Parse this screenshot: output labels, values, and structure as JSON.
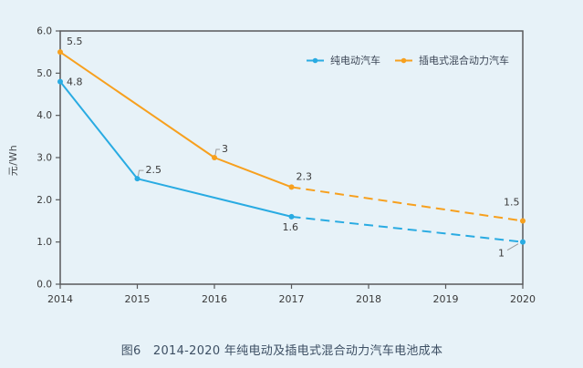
{
  "caption": "图6　2014-2020 年纯电动及插电式混合动力汽车电池成本",
  "colors": {
    "background": "#E7F2F8",
    "frame": "#58595B",
    "tick_label": "#3A3A3A",
    "data_label": "#3A3A3A",
    "leader": "#9B9B9B",
    "caption": "#3D4F63"
  },
  "chart_data": {
    "type": "line",
    "title": "",
    "xlabel": "",
    "ylabel": "元/Wh",
    "ylim": [
      0,
      6
    ],
    "xlim": [
      2014,
      2020
    ],
    "grid": false,
    "legend_position": "top-inside",
    "y_ticks": [
      {
        "v": 0,
        "label": "0.0"
      },
      {
        "v": 1,
        "label": "1.0"
      },
      {
        "v": 2,
        "label": "2.0"
      },
      {
        "v": 3,
        "label": "3.0"
      },
      {
        "v": 4,
        "label": "4.0"
      },
      {
        "v": 5,
        "label": "5.0"
      },
      {
        "v": 6,
        "label": "6.0"
      }
    ],
    "x_ticks": [
      {
        "v": 2014,
        "label": "2014"
      },
      {
        "v": 2015,
        "label": "2015"
      },
      {
        "v": 2016,
        "label": "2016"
      },
      {
        "v": 2017,
        "label": "2017"
      },
      {
        "v": 2018,
        "label": "2018"
      },
      {
        "v": 2019,
        "label": "2019"
      },
      {
        "v": 2020,
        "label": "2020"
      }
    ],
    "series": [
      {
        "name": "纯电动汽车",
        "color": "#29ABE2",
        "solid": [
          [
            2014,
            4.8
          ],
          [
            2015,
            2.5
          ],
          [
            2017,
            1.6
          ]
        ],
        "dashed": [
          [
            2017,
            1.6
          ],
          [
            2020,
            1.0
          ]
        ],
        "points": [
          [
            2014,
            4.8
          ],
          [
            2015,
            2.5
          ],
          [
            2017,
            1.6
          ],
          [
            2020,
            1.0
          ]
        ],
        "labels": [
          {
            "x": 2014,
            "v": 4.8,
            "text": "4.8",
            "dx": 7,
            "dy": 4
          },
          {
            "x": 2015,
            "v": 2.5,
            "text": "2.5",
            "dx": 9,
            "dy": -6,
            "leader": [
              [
                1,
                -3
              ],
              [
                2,
                -9
              ],
              [
                7,
                -9
              ]
            ]
          },
          {
            "x": 2017,
            "v": 1.6,
            "text": "1.6",
            "dx": -10,
            "dy": 15
          },
          {
            "x": 2020,
            "v": 1.0,
            "text": "1",
            "dx": -27,
            "dy": 16,
            "leader": [
              [
                -5,
                2
              ],
              [
                -17,
                9
              ]
            ]
          }
        ]
      },
      {
        "name": "插电式混合动力汽车",
        "color": "#F7A01E",
        "solid": [
          [
            2014,
            5.5
          ],
          [
            2016,
            3.0
          ],
          [
            2017,
            2.3
          ]
        ],
        "dashed": [
          [
            2017,
            2.3
          ],
          [
            2020,
            1.5
          ]
        ],
        "points": [
          [
            2014,
            5.5
          ],
          [
            2016,
            3.0
          ],
          [
            2017,
            2.3
          ],
          [
            2020,
            1.5
          ]
        ],
        "labels": [
          {
            "x": 2014,
            "v": 5.5,
            "text": "5.5",
            "dx": 7,
            "dy": -8
          },
          {
            "x": 2016,
            "v": 3.0,
            "text": "3",
            "dx": 8,
            "dy": -6,
            "leader": [
              [
                1,
                -3
              ],
              [
                2,
                -9
              ],
              [
                6,
                -9
              ]
            ]
          },
          {
            "x": 2017,
            "v": 2.3,
            "text": "2.3",
            "dx": 5,
            "dy": -8
          },
          {
            "x": 2020,
            "v": 1.5,
            "text": "1.5",
            "dx": -21,
            "dy": -17
          }
        ]
      }
    ]
  }
}
